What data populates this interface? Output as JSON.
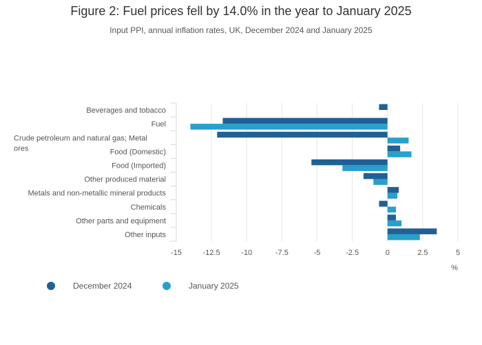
{
  "title": "Figure 2: Fuel prices fell by 14.0% in the year to January 2025",
  "subtitle": "Input PPI, annual inflation rates, UK, December 2024 and January 2025",
  "colors": {
    "december": "#206095",
    "january": "#27a0cc",
    "grid": "#e6e6e6",
    "axis_text": "#707071"
  },
  "chart_data": {
    "type": "bar",
    "orientation": "horizontal",
    "categories": [
      "Beverages and tobacco",
      "Fuel",
      "Crude petroleum and natural gas; Metal ores",
      "Food (Domestic)",
      "Food (Imported)",
      "Other produced material",
      "Metals and non-metallic mineral products",
      "Chemicals",
      "Other parts and equipment",
      "Other inputs"
    ],
    "category_lines": [
      [
        "Beverages and tobacco"
      ],
      [
        "Fuel"
      ],
      [
        "Crude petroleum and natural gas; Metal",
        "ores"
      ],
      [
        "Food (Domestic)"
      ],
      [
        "Food (Imported)"
      ],
      [
        "Other produced material"
      ],
      [
        "Metals and non-metallic mineral products"
      ],
      [
        "Chemicals"
      ],
      [
        "Other parts and equipment"
      ],
      [
        "Other inputs"
      ]
    ],
    "series": [
      {
        "name": "December 2024",
        "values": [
          -0.6,
          -11.7,
          -12.1,
          0.9,
          -5.4,
          -1.7,
          0.8,
          -0.6,
          0.6,
          3.5
        ]
      },
      {
        "name": "January 2025",
        "values": [
          null,
          -14.0,
          1.5,
          1.7,
          -3.2,
          -1.0,
          0.7,
          0.6,
          1.0,
          2.3
        ]
      }
    ],
    "xlim": [
      -15,
      5
    ],
    "xticks": [
      -15,
      -12.5,
      -10,
      -7.5,
      -5,
      -2.5,
      0,
      2.5,
      5
    ],
    "xtick_labels": [
      "-15",
      "-12.5",
      "-10",
      "-7.5",
      "-5",
      "-2.5",
      "0",
      "2.5",
      "5"
    ],
    "xlabel": "%",
    "grid": true,
    "legend_position": "bottom-left"
  },
  "legend": [
    {
      "label": "December 2024",
      "color": "#206095"
    },
    {
      "label": "January 2025",
      "color": "#27a0cc"
    }
  ]
}
